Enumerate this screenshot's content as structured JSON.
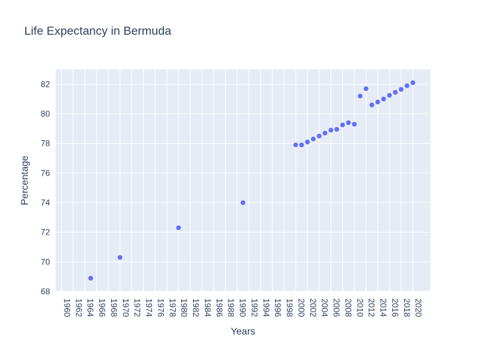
{
  "chart_data": {
    "type": "scatter",
    "title": "Life Expectancy in Bermuda",
    "xlabel": "Years",
    "ylabel": "Percentage",
    "x_ticks": [
      "1960",
      "1962",
      "1964",
      "1966",
      "1968",
      "1970",
      "1972",
      "1974",
      "1976",
      "1978",
      "1980",
      "1982",
      "1984",
      "1986",
      "1988",
      "1990",
      "1992",
      "1994",
      "1996",
      "1998",
      "2000",
      "2002",
      "2004",
      "2006",
      "2008",
      "2010",
      "2012",
      "2014",
      "2016",
      "2018",
      "2020"
    ],
    "y_ticks": [
      68,
      70,
      72,
      74,
      76,
      78,
      80,
      82
    ],
    "xlim": [
      1959,
      2023
    ],
    "ylim": [
      68,
      83
    ],
    "grid": true,
    "points": [
      {
        "x": 1965,
        "y": 68.9
      },
      {
        "x": 1970,
        "y": 70.3
      },
      {
        "x": 1980,
        "y": 72.3
      },
      {
        "x": 1991,
        "y": 74.0
      },
      {
        "x": 2000,
        "y": 77.9
      },
      {
        "x": 2001,
        "y": 77.9
      },
      {
        "x": 2002,
        "y": 78.1
      },
      {
        "x": 2003,
        "y": 78.3
      },
      {
        "x": 2004,
        "y": 78.5
      },
      {
        "x": 2005,
        "y": 78.7
      },
      {
        "x": 2006,
        "y": 78.9
      },
      {
        "x": 2007,
        "y": 78.95
      },
      {
        "x": 2008,
        "y": 79.25
      },
      {
        "x": 2009,
        "y": 79.4
      },
      {
        "x": 2010,
        "y": 79.3
      },
      {
        "x": 2011,
        "y": 81.2
      },
      {
        "x": 2012,
        "y": 81.7
      },
      {
        "x": 2013,
        "y": 80.6
      },
      {
        "x": 2014,
        "y": 80.8
      },
      {
        "x": 2015,
        "y": 81.0
      },
      {
        "x": 2016,
        "y": 81.25
      },
      {
        "x": 2017,
        "y": 81.45
      },
      {
        "x": 2018,
        "y": 81.65
      },
      {
        "x": 2019,
        "y": 81.9
      },
      {
        "x": 2020,
        "y": 82.1
      }
    ],
    "colors": {
      "marker": "#636efa",
      "plot_bg": "#e5ecf6",
      "grid": "#ffffff",
      "text": "#2a3f5f"
    }
  }
}
